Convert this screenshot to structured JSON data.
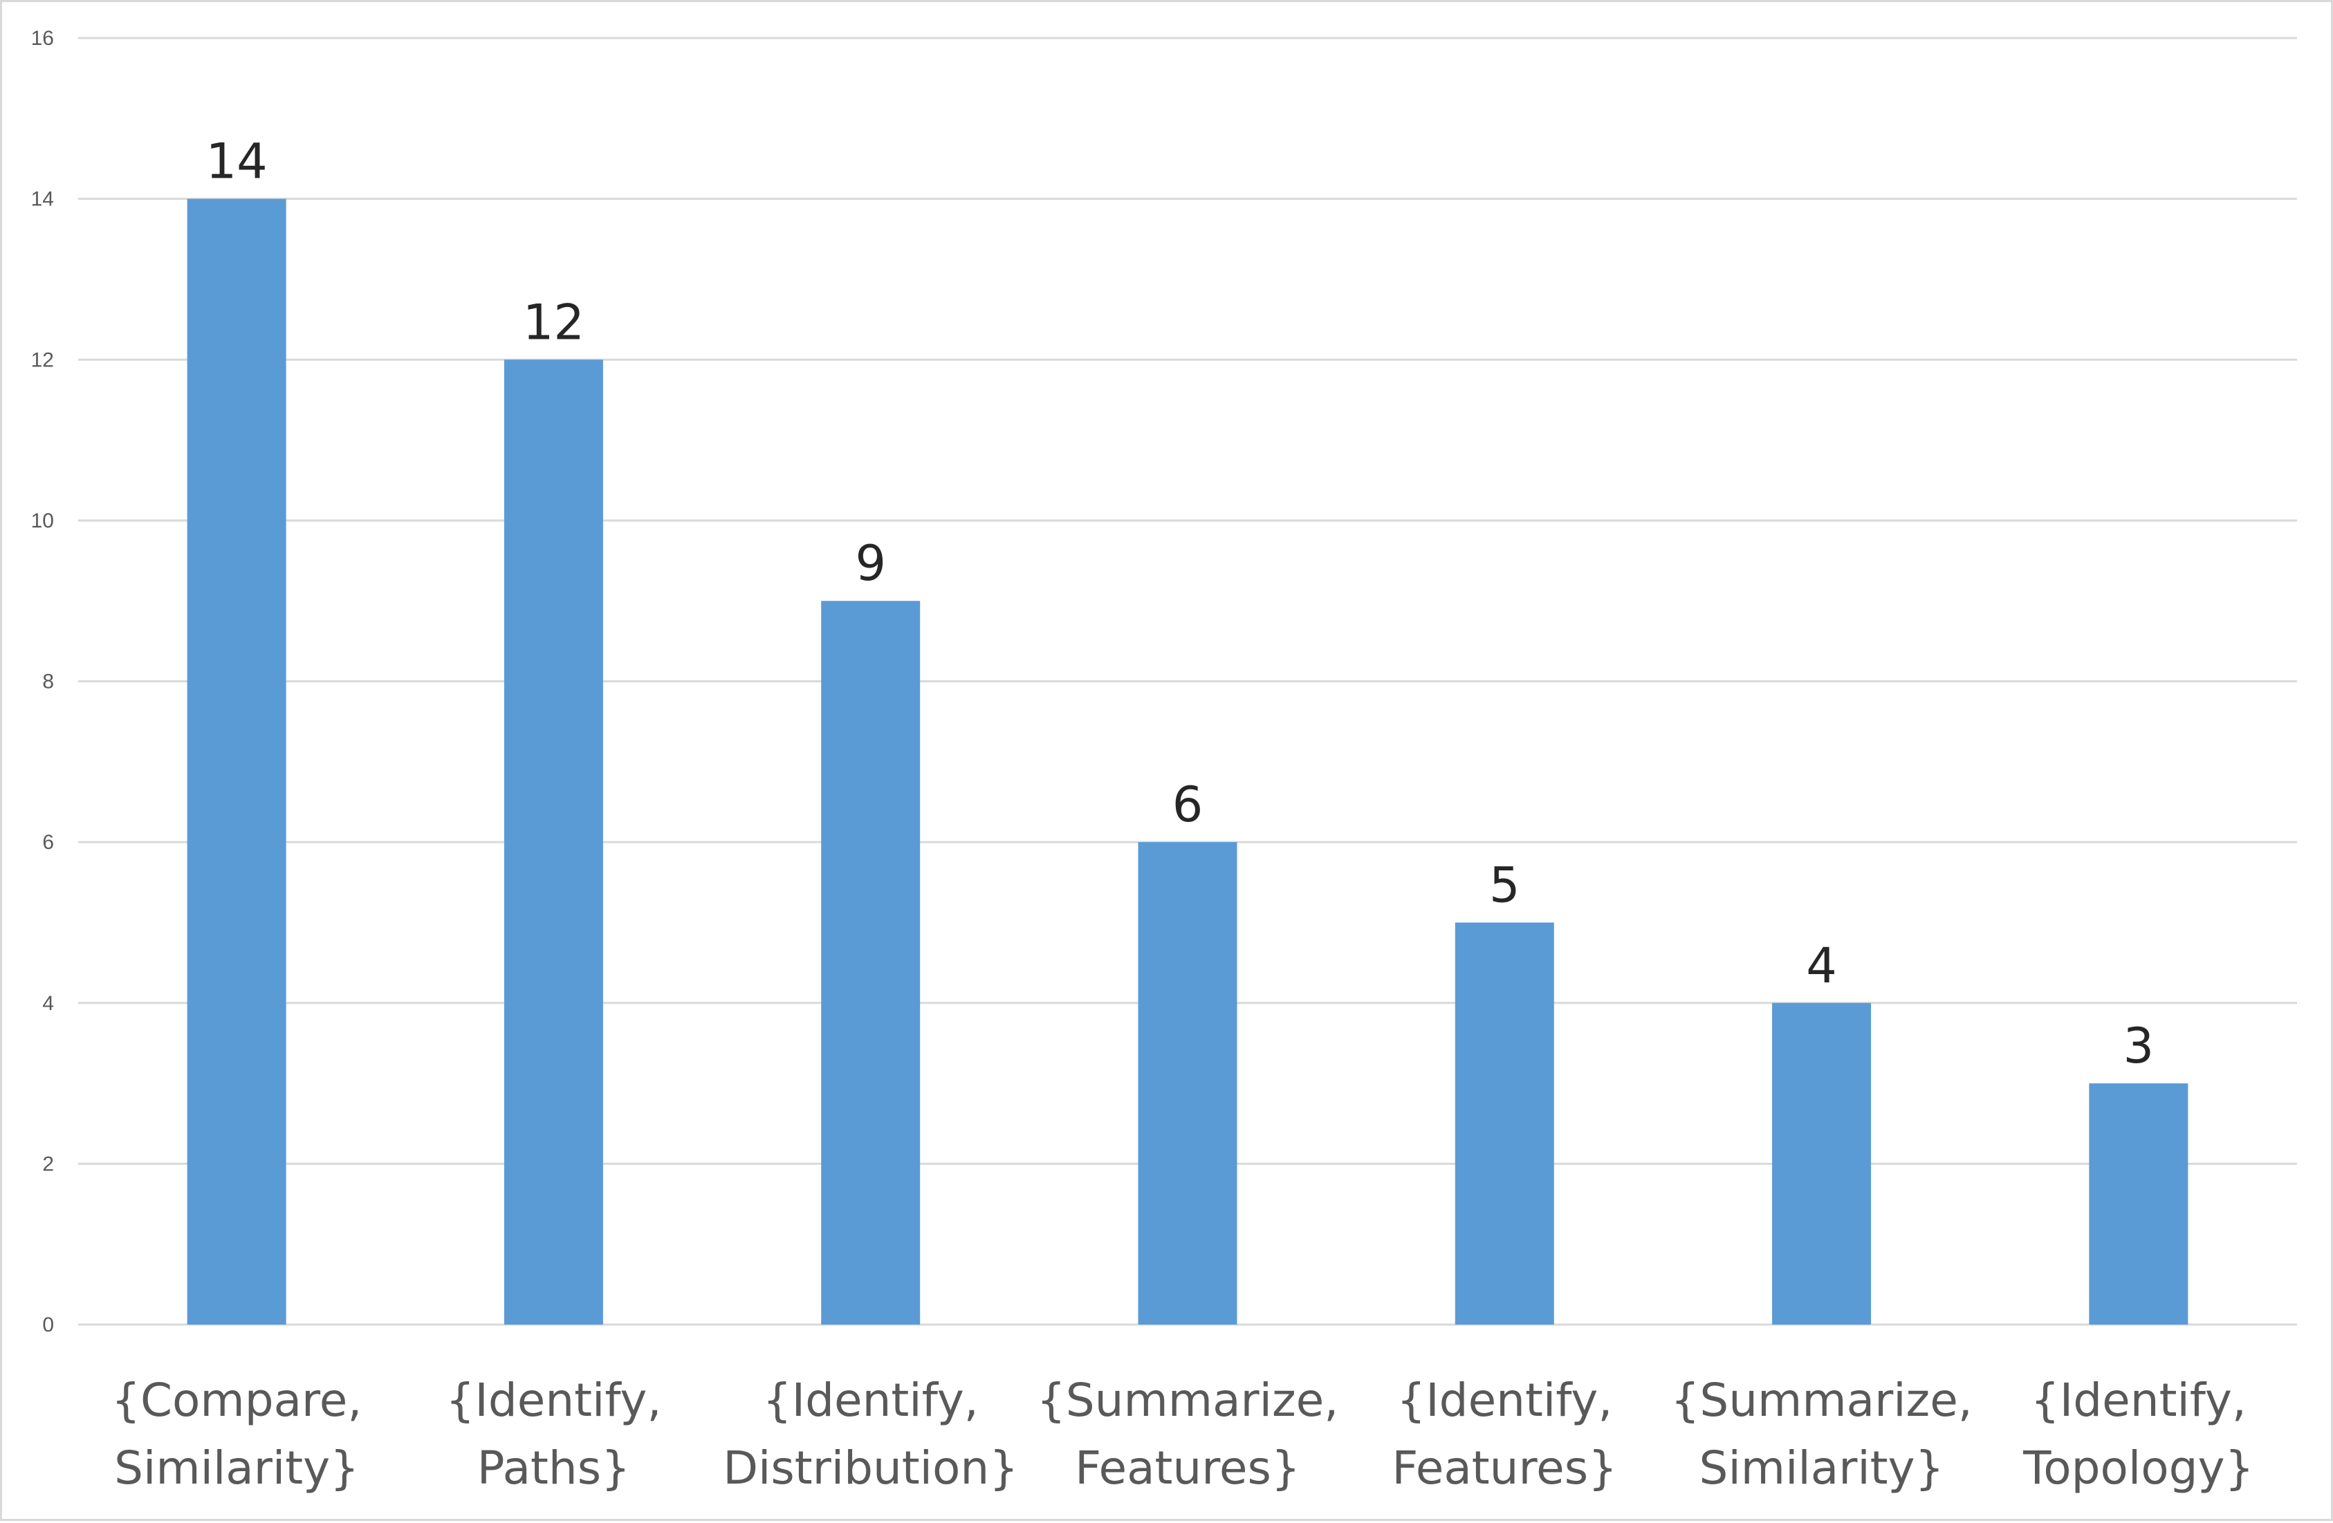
{
  "chart_data": {
    "type": "bar",
    "title": "",
    "xlabel": "",
    "ylabel": "",
    "categories": [
      [
        "{Compare,",
        "Similarity}"
      ],
      [
        "{Identify,",
        "Paths}"
      ],
      [
        "{Identify,",
        "Distribution}"
      ],
      [
        "{Summarize,",
        "Features}"
      ],
      [
        "{Identify,",
        "Features}"
      ],
      [
        "{Summarize,",
        "Similarity}"
      ],
      [
        "{Identify,",
        "Topology}"
      ]
    ],
    "values": [
      14,
      12,
      9,
      6,
      5,
      4,
      3
    ],
    "data_labels": [
      "14",
      "12",
      "9",
      "6",
      "5",
      "4",
      "3"
    ],
    "ylim": [
      0,
      16
    ],
    "yticks": [
      "0",
      "2",
      "4",
      "6",
      "8",
      "10",
      "12",
      "14",
      "16"
    ],
    "grid": true,
    "legend": "none",
    "bar_color": "#5b9bd5"
  }
}
